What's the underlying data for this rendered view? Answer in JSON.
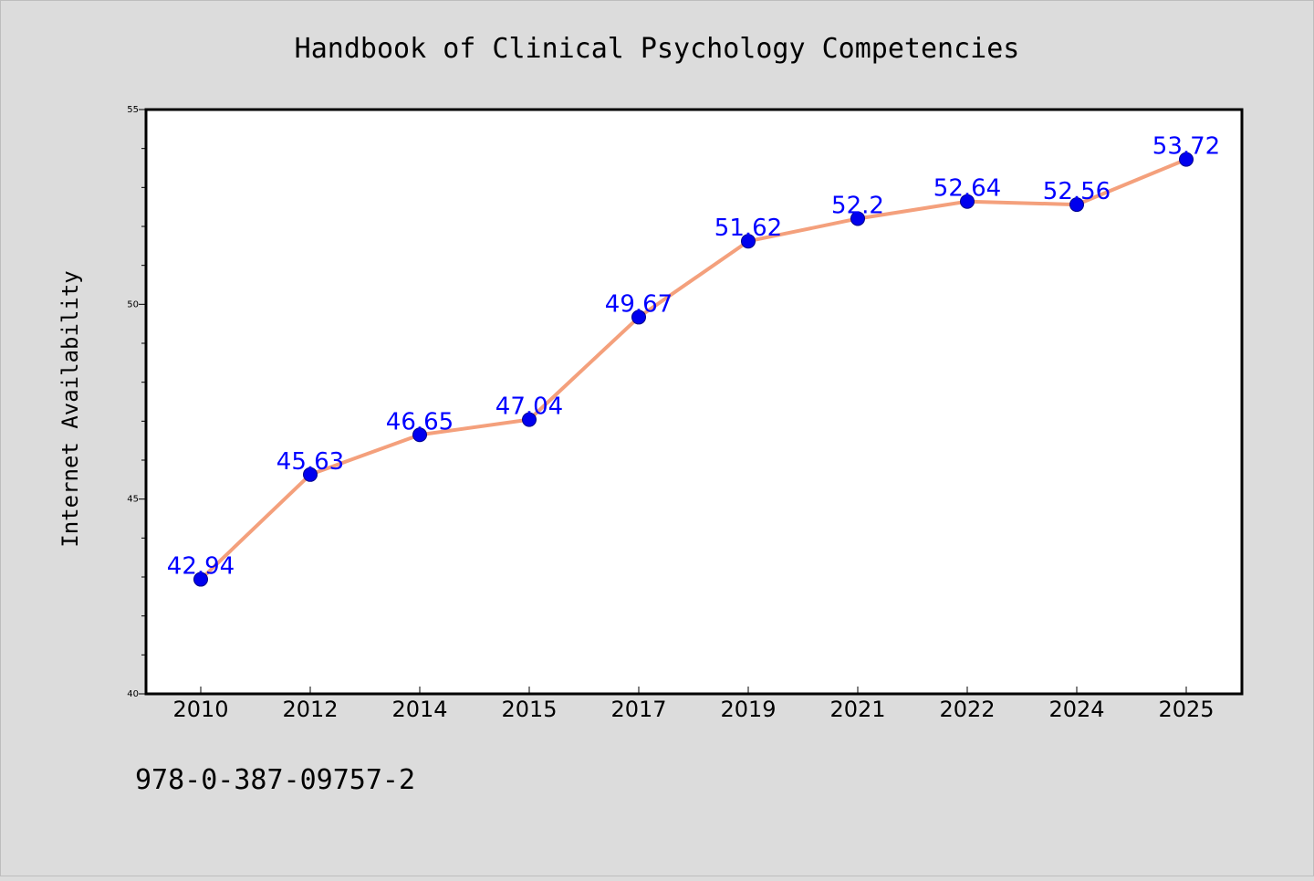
{
  "chart_data": {
    "type": "line",
    "title": "Handbook of Clinical Psychology Competencies",
    "ylabel": "Internet Availability",
    "xlabel": "",
    "categories": [
      "2010",
      "2012",
      "2014",
      "2015",
      "2017",
      "2019",
      "2021",
      "2022",
      "2024",
      "2025"
    ],
    "series": [
      {
        "values": [
          42.94,
          45.63,
          46.65,
          47.04,
          49.67,
          51.62,
          52.2,
          52.64,
          52.56,
          53.72
        ],
        "data_labels": [
          "42.94",
          "45.63",
          "46.65",
          "47.04",
          "49.67",
          "51.62",
          "52.2",
          "52.64",
          "52.56",
          "53.72"
        ],
        "line_color": "#f4a07c",
        "marker_color": "#0000ee",
        "label_color": "#0000ff"
      }
    ],
    "ylim": [
      40,
      55
    ],
    "yticks": [
      "40",
      "45",
      "50",
      "55"
    ],
    "minor_ytick_step": 1,
    "grid": false,
    "legend": "none"
  },
  "footer": {
    "isbn": "978-0-387-09757-2"
  }
}
